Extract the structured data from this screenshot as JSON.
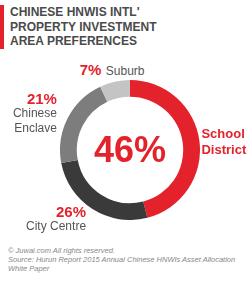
{
  "chart_data": {
    "type": "doughnut",
    "title": "CHINESE HNWIS INTL' PROPERTY INVESTMENT AREA PREFERENCES",
    "categories": [
      "School District",
      "City Centre",
      "Chinese Enclave",
      "Suburb"
    ],
    "values": [
      46,
      26,
      21,
      7
    ],
    "value_labels": [
      "46%",
      "26%",
      "21%",
      "7%"
    ],
    "colors": [
      "#e4222b",
      "#3a3a3a",
      "#7d7d7d",
      "#c4c4c4"
    ],
    "data_labels": true,
    "annotations": [
      "© Juwai.com All rights reserved.",
      "Source: Hurun Report 2015 Annual Chinese HNWIs Asset Allocation White Paper"
    ]
  }
}
